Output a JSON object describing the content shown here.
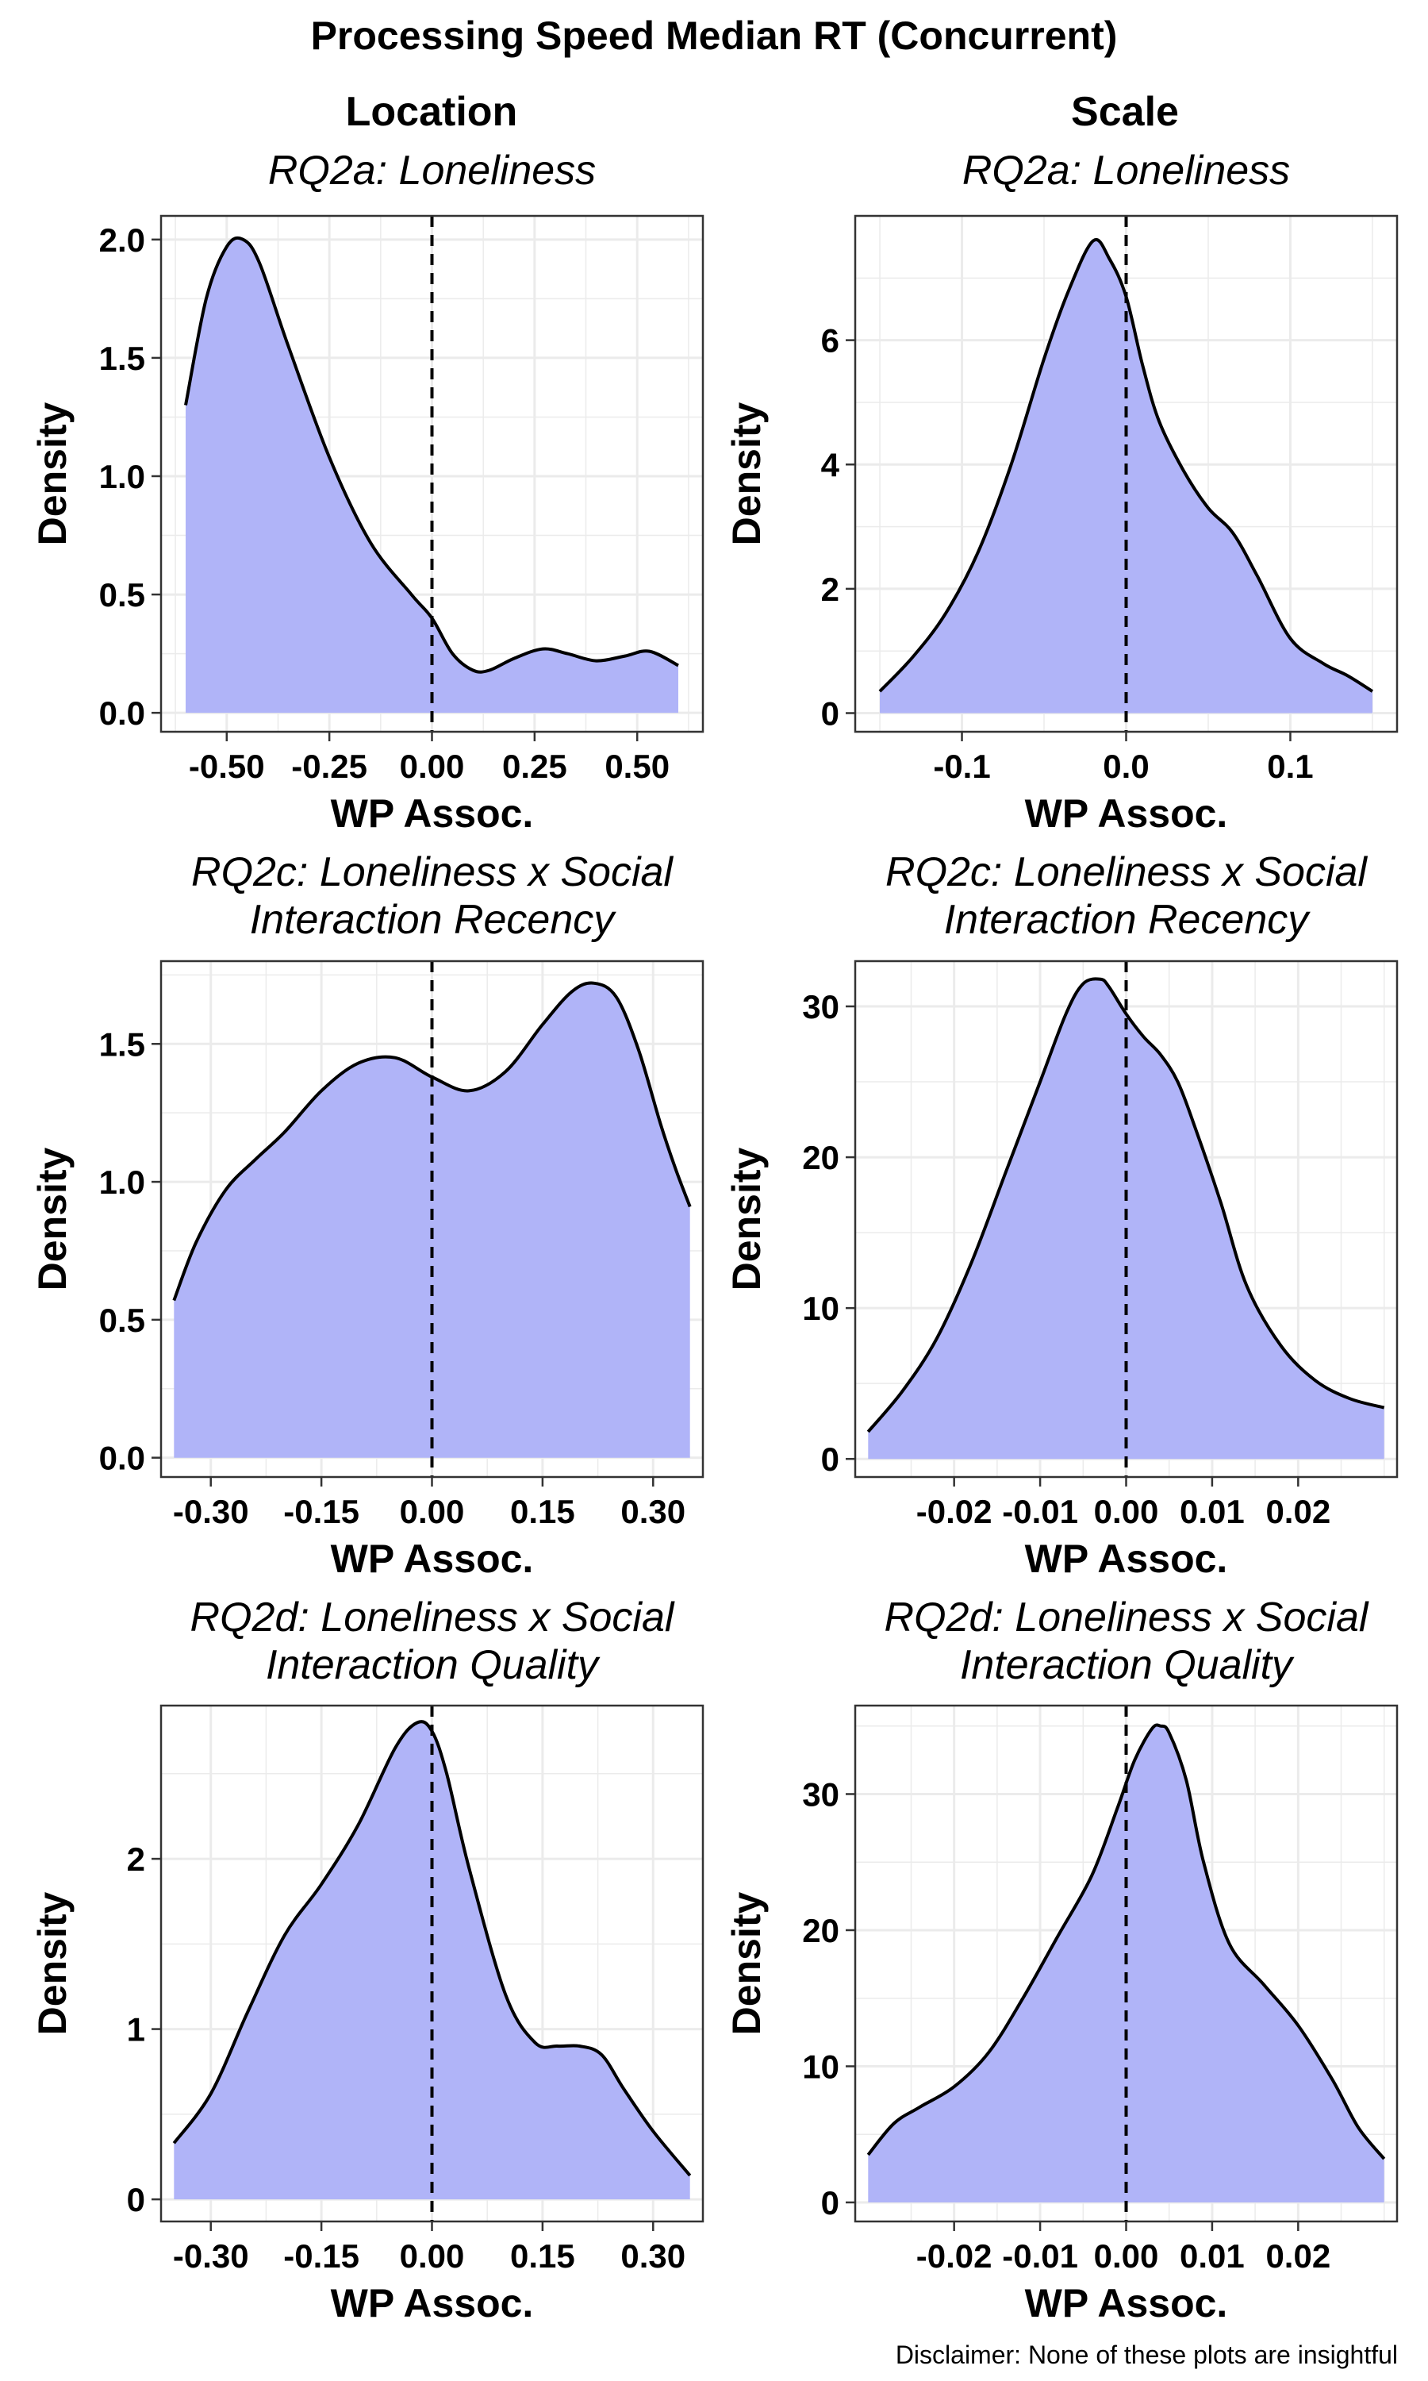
{
  "title": "Processing Speed Median RT (Concurrent)",
  "column_titles": [
    "Location",
    "Scale"
  ],
  "disclaimer": "Disclaimer: None of these plots are insightful",
  "colors": {
    "fill": "#b0b4f8",
    "line": "#000000",
    "grid": "#ebebeb",
    "border": "#333333"
  },
  "chart_data": [
    {
      "type": "area",
      "subtitle": [
        "RQ2a: Loneliness"
      ],
      "xlabel": "WP Assoc.",
      "ylabel": "Density",
      "xlim": [
        -0.66,
        0.66
      ],
      "ylim": [
        -0.08,
        2.1
      ],
      "xticks": [
        -0.5,
        -0.25,
        0.0,
        0.25,
        0.5
      ],
      "xtick_labels": [
        "-0.50",
        "-0.25",
        "0.00",
        "0.25",
        "0.50"
      ],
      "yticks": [
        0,
        0.5,
        1.0,
        1.5,
        2.0
      ],
      "ytick_labels": [
        "0.0",
        "0.5",
        "1.0",
        "1.5",
        "2.0"
      ],
      "vline": 0,
      "x": [
        -0.6,
        -0.55,
        -0.5,
        -0.46,
        -0.42,
        -0.35,
        -0.25,
        -0.15,
        -0.05,
        0.0,
        0.05,
        0.1,
        0.14,
        0.2,
        0.27,
        0.33,
        0.4,
        0.47,
        0.53,
        0.6
      ],
      "y": [
        1.3,
        1.75,
        1.97,
        2.0,
        1.9,
        1.55,
        1.08,
        0.72,
        0.5,
        0.4,
        0.25,
        0.18,
        0.18,
        0.23,
        0.27,
        0.25,
        0.22,
        0.24,
        0.26,
        0.2
      ]
    },
    {
      "type": "area",
      "subtitle": [
        "RQ2a: Loneliness"
      ],
      "xlabel": "WP Assoc.",
      "ylabel": "Density",
      "xlim": [
        -0.165,
        0.165
      ],
      "ylim": [
        -0.3,
        8.0
      ],
      "xticks": [
        -0.1,
        0.0,
        0.1
      ],
      "xtick_labels": [
        "-0.1",
        "0.0",
        "0.1"
      ],
      "yticks": [
        0,
        2,
        4,
        6
      ],
      "ytick_labels": [
        "0",
        "2",
        "4",
        "6"
      ],
      "vline": 0,
      "x": [
        -0.15,
        -0.13,
        -0.11,
        -0.09,
        -0.07,
        -0.05,
        -0.035,
        -0.02,
        -0.01,
        0.0,
        0.01,
        0.02,
        0.035,
        0.05,
        0.065,
        0.08,
        0.1,
        0.12,
        0.135,
        0.15
      ],
      "y": [
        0.35,
        0.9,
        1.6,
        2.6,
        4.0,
        5.7,
        6.8,
        7.6,
        7.3,
        6.7,
        5.6,
        4.7,
        3.9,
        3.3,
        2.9,
        2.2,
        1.2,
        0.8,
        0.6,
        0.35
      ]
    },
    {
      "type": "area",
      "subtitle": [
        "RQ2c: Loneliness x Social",
        "Interaction Recency"
      ],
      "xlabel": "WP Assoc.",
      "ylabel": "Density",
      "xlim": [
        -0.3675,
        0.3675
      ],
      "ylim": [
        -0.07,
        1.8
      ],
      "xticks": [
        -0.3,
        -0.15,
        0.0,
        0.15,
        0.3
      ],
      "xtick_labels": [
        "-0.30",
        "-0.15",
        "0.00",
        "0.15",
        "0.30"
      ],
      "yticks": [
        0,
        0.5,
        1.0,
        1.5
      ],
      "ytick_labels": [
        "0.0",
        "0.5",
        "1.0",
        "1.5"
      ],
      "vline": 0,
      "x": [
        -0.35,
        -0.32,
        -0.28,
        -0.24,
        -0.2,
        -0.15,
        -0.1,
        -0.05,
        0.0,
        0.05,
        0.1,
        0.15,
        0.19,
        0.22,
        0.25,
        0.28,
        0.31,
        0.33,
        0.35
      ],
      "y": [
        0.57,
        0.78,
        0.97,
        1.08,
        1.18,
        1.33,
        1.43,
        1.45,
        1.38,
        1.33,
        1.4,
        1.57,
        1.69,
        1.72,
        1.67,
        1.48,
        1.21,
        1.05,
        0.91
      ]
    },
    {
      "type": "area",
      "subtitle": [
        "RQ2c: Loneliness x Social",
        "Interaction Recency"
      ],
      "xlabel": "WP Assoc.",
      "ylabel": "Density",
      "xlim": [
        -0.0315,
        0.0315
      ],
      "ylim": [
        -1.2,
        33.0
      ],
      "xticks": [
        -0.02,
        -0.01,
        0.0,
        0.01,
        0.02
      ],
      "xtick_labels": [
        "-0.02",
        "-0.01",
        "0.00",
        "0.01",
        "0.02"
      ],
      "yticks": [
        0,
        10,
        20,
        30
      ],
      "ytick_labels": [
        "0",
        "10",
        "20",
        "30"
      ],
      "vline": 0,
      "x": [
        -0.03,
        -0.026,
        -0.022,
        -0.018,
        -0.014,
        -0.01,
        -0.007,
        -0.005,
        -0.003,
        -0.002,
        0.0,
        0.002,
        0.004,
        0.006,
        0.008,
        0.011,
        0.014,
        0.018,
        0.022,
        0.026,
        0.03
      ],
      "y": [
        1.8,
        4.5,
        8.0,
        13.0,
        19.0,
        25.0,
        29.5,
        31.5,
        31.8,
        31.3,
        29.5,
        28.0,
        26.8,
        25.0,
        22.0,
        17.0,
        11.5,
        7.5,
        5.2,
        4.0,
        3.4
      ]
    },
    {
      "type": "area",
      "subtitle": [
        "RQ2d: Loneliness x Social",
        "Interaction Quality"
      ],
      "xlabel": "WP Assoc.",
      "ylabel": "Density",
      "xlim": [
        -0.3675,
        0.3675
      ],
      "ylim": [
        -0.13,
        2.9
      ],
      "xticks": [
        -0.3,
        -0.15,
        0.0,
        0.15,
        0.3
      ],
      "xtick_labels": [
        "-0.30",
        "-0.15",
        "0.00",
        "0.15",
        "0.30"
      ],
      "yticks": [
        0,
        1,
        2
      ],
      "ytick_labels": [
        "0",
        "1",
        "2"
      ],
      "vline": 0,
      "x": [
        -0.35,
        -0.3,
        -0.25,
        -0.2,
        -0.15,
        -0.1,
        -0.05,
        -0.02,
        0.0,
        0.02,
        0.05,
        0.1,
        0.14,
        0.17,
        0.2,
        0.23,
        0.26,
        0.3,
        0.35
      ],
      "y": [
        0.33,
        0.62,
        1.1,
        1.55,
        1.85,
        2.2,
        2.65,
        2.8,
        2.75,
        2.5,
        1.95,
        1.2,
        0.92,
        0.9,
        0.9,
        0.85,
        0.65,
        0.4,
        0.14
      ]
    },
    {
      "type": "area",
      "subtitle": [
        "RQ2d: Loneliness x Social",
        "Interaction Quality"
      ],
      "xlabel": "WP Assoc.",
      "ylabel": "Density",
      "xlim": [
        -0.0315,
        0.0315
      ],
      "ylim": [
        -1.4,
        36.5
      ],
      "xticks": [
        -0.02,
        -0.01,
        0.0,
        0.01,
        0.02
      ],
      "xtick_labels": [
        "-0.02",
        "-0.01",
        "0.00",
        "0.01",
        "0.02"
      ],
      "yticks": [
        0,
        10,
        20,
        30
      ],
      "ytick_labels": [
        "0",
        "10",
        "20",
        "30"
      ],
      "vline": 0,
      "x": [
        -0.03,
        -0.027,
        -0.024,
        -0.02,
        -0.016,
        -0.012,
        -0.008,
        -0.004,
        -0.001,
        0.001,
        0.003,
        0.004,
        0.005,
        0.007,
        0.009,
        0.012,
        0.016,
        0.02,
        0.024,
        0.027,
        0.03
      ],
      "y": [
        3.5,
        5.8,
        7.0,
        8.5,
        11.0,
        15.0,
        19.5,
        24.0,
        29.0,
        32.5,
        34.8,
        35.0,
        34.5,
        31.0,
        25.0,
        19.0,
        16.0,
        13.0,
        9.0,
        5.5,
        3.2
      ]
    }
  ]
}
